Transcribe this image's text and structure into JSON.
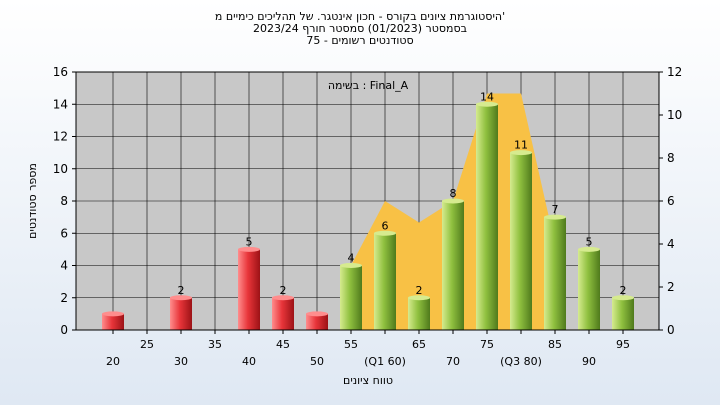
{
  "chart_data": {
    "type": "bar",
    "title_lines": [
      "היסטוגרמת ציונים בקורס - חכון אינטגר. של תהליכים כימיים מ'",
      "בסמסטר  (01/2023)  סמסטר חורף  2023/24",
      "סטודנטים רשומים - 75"
    ],
    "annotation": "בשימה : Final_A",
    "xlabel": "טווח ציונים",
    "ylabel": "מספר סטודנטים",
    "ylim": [
      0,
      16
    ],
    "y_ticks": [
      0,
      2,
      4,
      6,
      8,
      10,
      12,
      14,
      16
    ],
    "y2lim": [
      0,
      12
    ],
    "y2_ticks": [
      0,
      2,
      4,
      6,
      8,
      10,
      12
    ],
    "x_tick_labels": [
      {
        "x": 20,
        "row": 2,
        "label": "20"
      },
      {
        "x": 25,
        "row": 1,
        "label": "25"
      },
      {
        "x": 30,
        "row": 2,
        "label": "30"
      },
      {
        "x": 35,
        "row": 1,
        "label": "35"
      },
      {
        "x": 40,
        "row": 2,
        "label": "40"
      },
      {
        "x": 45,
        "row": 1,
        "label": "45"
      },
      {
        "x": 50,
        "row": 2,
        "label": "50"
      },
      {
        "x": 55,
        "row": 1,
        "label": "55"
      },
      {
        "x": 60,
        "row": 2,
        "label": "(Q1 60)"
      },
      {
        "x": 65,
        "row": 1,
        "label": "65"
      },
      {
        "x": 70,
        "row": 2,
        "label": "70"
      },
      {
        "x": 75,
        "row": 1,
        "label": "75"
      },
      {
        "x": 80,
        "row": 2,
        "label": "(Q3 80)"
      },
      {
        "x": 85,
        "row": 1,
        "label": "85"
      },
      {
        "x": 90,
        "row": 2,
        "label": "90"
      },
      {
        "x": 95,
        "row": 1,
        "label": "95"
      }
    ],
    "bars": [
      {
        "x": 20,
        "value": 1,
        "label": "",
        "color": "red"
      },
      {
        "x": 30,
        "value": 2,
        "label": "2",
        "color": "red"
      },
      {
        "x": 40,
        "value": 5,
        "label": "5",
        "color": "red"
      },
      {
        "x": 45,
        "value": 2,
        "label": "2",
        "color": "red"
      },
      {
        "x": 50,
        "value": 1,
        "label": "",
        "color": "red"
      },
      {
        "x": 55,
        "value": 4,
        "label": "4",
        "color": "green"
      },
      {
        "x": 60,
        "value": 6,
        "label": "6",
        "color": "green"
      },
      {
        "x": 65,
        "value": 2,
        "label": "2",
        "color": "green"
      },
      {
        "x": 70,
        "value": 8,
        "label": "8",
        "color": "green"
      },
      {
        "x": 75,
        "value": 14,
        "label": "14",
        "color": "green"
      },
      {
        "x": 80,
        "value": 11,
        "label": "11",
        "color": "green"
      },
      {
        "x": 85,
        "value": 7,
        "label": "7",
        "color": "green"
      },
      {
        "x": 90,
        "value": 5,
        "label": "5",
        "color": "green"
      },
      {
        "x": 95,
        "value": 2,
        "label": "2",
        "color": "green"
      }
    ],
    "area_overlay": [
      {
        "x": 55,
        "y": 3
      },
      {
        "x": 60,
        "y": 6
      },
      {
        "x": 65,
        "y": 5
      },
      {
        "x": 70,
        "y": 6
      },
      {
        "x": 75,
        "y": 11
      },
      {
        "x": 80,
        "y": 11
      },
      {
        "x": 85,
        "y": 4
      }
    ],
    "colors": {
      "plot_bg": "#c8c8c8",
      "grid": "#000000",
      "area": "#f8c145",
      "red_light": "#ff8d8d",
      "red_mid": "#e8353a",
      "red_dark": "#9c1216",
      "green_light": "#d6eb8f",
      "green_mid": "#8fc03f",
      "green_dark": "#4f7a1c"
    }
  }
}
